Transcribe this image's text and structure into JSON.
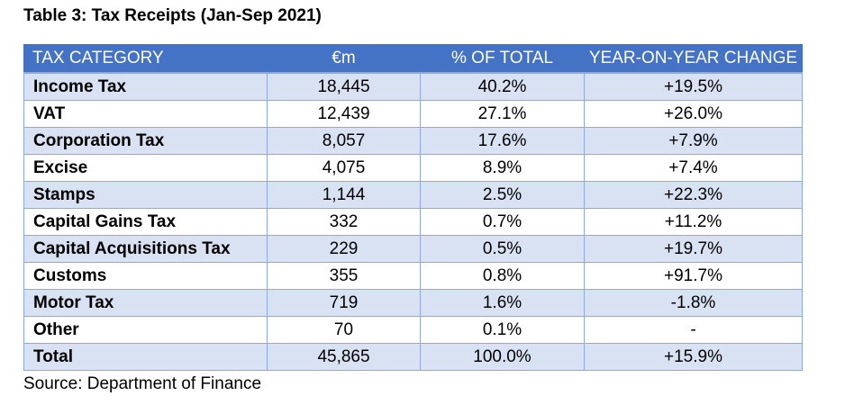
{
  "title": "Table 3: Tax Receipts (Jan-Sep 2021)",
  "headers": [
    "TAX CATEGORY",
    "€m",
    "% OF TOTAL",
    "YEAR-ON-YEAR CHANGE"
  ],
  "rows": [
    {
      "category": "Income Tax",
      "amount": "18,445",
      "share": "40.2%",
      "change": "+19.5%"
    },
    {
      "category": "VAT",
      "amount": "12,439",
      "share": "27.1%",
      "change": "+26.0%"
    },
    {
      "category": "Corporation Tax",
      "amount": "8,057",
      "share": "17.6%",
      "change": "+7.9%"
    },
    {
      "category": "Excise",
      "amount": "4,075",
      "share": "8.9%",
      "change": "+7.4%"
    },
    {
      "category": "Stamps",
      "amount": "1,144",
      "share": "2.5%",
      "change": "+22.3%"
    },
    {
      "category": "Capital Gains Tax",
      "amount": "332",
      "share": "0.7%",
      "change": "+11.2%"
    },
    {
      "category": "Capital Acquisitions Tax",
      "amount": "229",
      "share": "0.5%",
      "change": "+19.7%"
    },
    {
      "category": "Customs",
      "amount": "355",
      "share": "0.8%",
      "change": "+91.7%"
    },
    {
      "category": "Motor Tax",
      "amount": "719",
      "share": "1.6%",
      "change": "-1.8%"
    },
    {
      "category": "Other",
      "amount": "70",
      "share": "0.1%",
      "change": "-"
    },
    {
      "category": "Total",
      "amount": "45,865",
      "share": "100.0%",
      "change": "+15.9%"
    }
  ],
  "source": "Source: Department of Finance",
  "colors": {
    "header_background": "#4472c4",
    "header_text": "#ffffff",
    "row_band": "#d9e2f3",
    "grid": "#8eaadb"
  }
}
